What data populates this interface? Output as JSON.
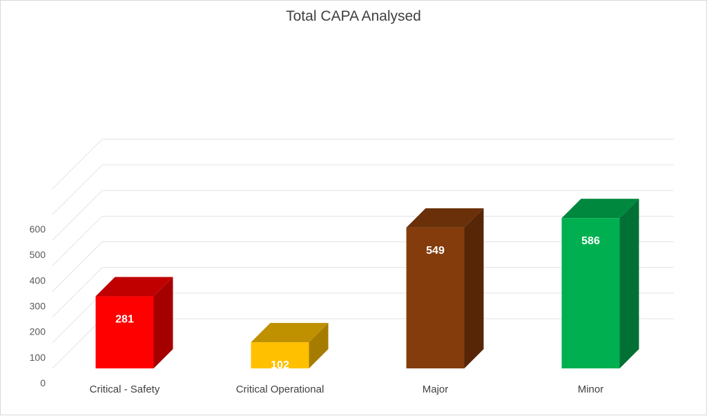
{
  "chart_data": {
    "type": "bar",
    "title": "Total CAPA Analysed",
    "xlabel": "",
    "ylabel": "",
    "categories": [
      "Critical - Safety",
      "Critical Operational",
      "Major",
      "Minor"
    ],
    "values": [
      281,
      102,
      549,
      586
    ],
    "data_labels": [
      "281",
      "102",
      "549",
      "586"
    ],
    "ylim": [
      0,
      600
    ],
    "yticks": [
      0,
      100,
      200,
      300,
      400,
      500,
      600
    ],
    "ytick_labels": [
      "0",
      "100",
      "200",
      "300",
      "400",
      "500",
      "600"
    ],
    "grid": true,
    "legend": "none",
    "style": "3d-column",
    "colors": {
      "front": [
        "#ff0000",
        "#ffc000",
        "#843c0c",
        "#00b050"
      ],
      "top": [
        "#c00000",
        "#bf9000",
        "#6a300a",
        "#00883e"
      ],
      "side": [
        "#a50000",
        "#a67c00",
        "#562607",
        "#007034"
      ]
    }
  }
}
